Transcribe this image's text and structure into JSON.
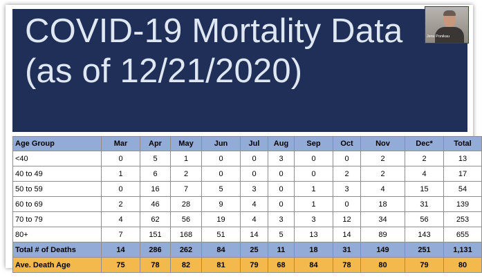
{
  "slide": {
    "title_line1": "COVID-19 Mortality Data",
    "title_line2": "(as of 12/21/2020)",
    "background_color": "#1f2f57",
    "title_color": "#dfe7f2"
  },
  "webcam": {
    "presenter_name": "Jens Ponikau"
  },
  "table": {
    "columns": [
      "Age Group",
      "Mar",
      "Apr",
      "May",
      "Jun",
      "Jul",
      "Aug",
      "Sep",
      "Oct",
      "Nov",
      "Dec*",
      "Total"
    ],
    "rows": [
      [
        "<40",
        "0",
        "5",
        "1",
        "0",
        "0",
        "3",
        "0",
        "0",
        "2",
        "2",
        "13"
      ],
      [
        "40 to 49",
        "1",
        "6",
        "2",
        "0",
        "0",
        "0",
        "0",
        "2",
        "2",
        "4",
        "17"
      ],
      [
        "50 to 59",
        "0",
        "16",
        "7",
        "5",
        "3",
        "0",
        "1",
        "3",
        "4",
        "15",
        "54"
      ],
      [
        "60 to 69",
        "2",
        "46",
        "28",
        "9",
        "4",
        "0",
        "1",
        "0",
        "18",
        "31",
        "139"
      ],
      [
        "70 to 79",
        "4",
        "62",
        "56",
        "19",
        "4",
        "3",
        "3",
        "12",
        "34",
        "56",
        "253"
      ],
      [
        "80+",
        "7",
        "151",
        "168",
        "51",
        "14",
        "5",
        "13",
        "14",
        "89",
        "143",
        "655"
      ]
    ],
    "total_row": [
      "Total # of Deaths",
      "14",
      "286",
      "262",
      "84",
      "25",
      "11",
      "18",
      "31",
      "149",
      "251",
      "1,131"
    ],
    "average_row": [
      "Ave. Death Age",
      "75",
      "78",
      "82",
      "81",
      "79",
      "68",
      "84",
      "78",
      "80",
      "79",
      "80"
    ],
    "header_color": "#93acd7",
    "average_color": "#f4b94d"
  }
}
